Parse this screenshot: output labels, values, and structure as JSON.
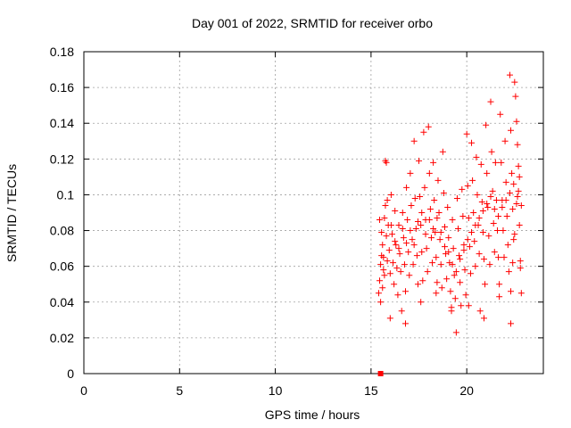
{
  "chart_data": {
    "type": "scatter",
    "title": "Day 001 of 2022, SRMTID for receiver orbo",
    "xlabel": "GPS time / hours",
    "ylabel": "SRMTID / TECUs",
    "xlim": [
      0,
      24
    ],
    "ylim": [
      0,
      0.18
    ],
    "x_ticks": [
      "0",
      "5",
      "10",
      "15",
      "20"
    ],
    "y_ticks": [
      "0",
      "0.02",
      "0.04",
      "0.06",
      "0.08",
      "0.1",
      "0.12",
      "0.14",
      "0.16",
      "0.18"
    ],
    "grid": true,
    "marker": "plus",
    "color": "#ff0000",
    "special_points": [
      {
        "x": 15.5,
        "y": 0.0,
        "marker": "square"
      }
    ],
    "series": [
      {
        "name": "",
        "points": [
          [
            15.4,
            0.045
          ],
          [
            15.45,
            0.052
          ],
          [
            15.5,
            0.061
          ],
          [
            15.55,
            0.066
          ],
          [
            15.6,
            0.072
          ],
          [
            15.65,
            0.058
          ],
          [
            15.7,
            0.087
          ],
          [
            15.75,
            0.094
          ],
          [
            15.8,
            0.077
          ],
          [
            15.85,
            0.063
          ],
          [
            15.5,
            0.04
          ],
          [
            15.6,
            0.048
          ],
          [
            15.7,
            0.055
          ],
          [
            15.75,
            0.119
          ],
          [
            15.8,
            0.118
          ],
          [
            15.9,
            0.083
          ],
          [
            15.95,
            0.069
          ],
          [
            16.0,
            0.056
          ],
          [
            16.05,
            0.1
          ],
          [
            16.1,
            0.078
          ],
          [
            16.15,
            0.062
          ],
          [
            16.2,
            0.05
          ],
          [
            16.25,
            0.091
          ],
          [
            16.3,
            0.072
          ],
          [
            16.35,
            0.059
          ],
          [
            16.4,
            0.044
          ],
          [
            16.45,
            0.083
          ],
          [
            16.5,
            0.067
          ],
          [
            16.55,
            0.057
          ],
          [
            16.6,
            0.035
          ],
          [
            16.65,
            0.09
          ],
          [
            16.7,
            0.076
          ],
          [
            16.75,
            0.061
          ],
          [
            16.8,
            0.046
          ],
          [
            16.85,
            0.104
          ],
          [
            16.9,
            0.086
          ],
          [
            16.95,
            0.068
          ],
          [
            17.0,
            0.055
          ],
          [
            17.05,
            0.112
          ],
          [
            17.1,
            0.094
          ],
          [
            17.15,
            0.075
          ],
          [
            17.2,
            0.061
          ],
          [
            17.25,
            0.13
          ],
          [
            17.3,
            0.098
          ],
          [
            17.35,
            0.081
          ],
          [
            17.4,
            0.066
          ],
          [
            17.45,
            0.05
          ],
          [
            17.5,
            0.119
          ],
          [
            17.55,
            0.099
          ],
          [
            17.6,
            0.083
          ],
          [
            17.65,
            0.068
          ],
          [
            17.7,
            0.052
          ],
          [
            17.75,
            0.135
          ],
          [
            17.8,
            0.104
          ],
          [
            17.85,
            0.086
          ],
          [
            17.9,
            0.07
          ],
          [
            17.95,
            0.057
          ],
          [
            18.0,
            0.138
          ],
          [
            18.05,
            0.112
          ],
          [
            18.1,
            0.092
          ],
          [
            18.15,
            0.076
          ],
          [
            18.2,
            0.062
          ],
          [
            18.25,
            0.118
          ],
          [
            18.3,
            0.097
          ],
          [
            18.35,
            0.079
          ],
          [
            18.4,
            0.065
          ],
          [
            18.45,
            0.051
          ],
          [
            18.5,
            0.108
          ],
          [
            18.55,
            0.09
          ],
          [
            18.6,
            0.075
          ],
          [
            18.65,
            0.061
          ],
          [
            18.7,
            0.048
          ],
          [
            18.75,
            0.124
          ],
          [
            18.8,
            0.101
          ],
          [
            18.85,
            0.082
          ],
          [
            18.9,
            0.067
          ],
          [
            18.95,
            0.053
          ],
          [
            19.0,
            0.093
          ],
          [
            19.05,
            0.076
          ],
          [
            19.1,
            0.062
          ],
          [
            19.15,
            0.046
          ],
          [
            19.2,
            0.035
          ],
          [
            19.25,
            0.086
          ],
          [
            19.3,
            0.07
          ],
          [
            19.35,
            0.055
          ],
          [
            19.4,
            0.042
          ],
          [
            19.45,
            0.023
          ],
          [
            19.5,
            0.098
          ],
          [
            19.55,
            0.081
          ],
          [
            19.6,
            0.066
          ],
          [
            19.65,
            0.051
          ],
          [
            19.7,
            0.038
          ],
          [
            19.75,
            0.103
          ],
          [
            19.8,
            0.088
          ],
          [
            19.85,
            0.072
          ],
          [
            19.9,
            0.058
          ],
          [
            19.95,
            0.044
          ],
          [
            20.0,
            0.134
          ],
          [
            20.05,
            0.105
          ],
          [
            20.1,
            0.087
          ],
          [
            20.15,
            0.071
          ],
          [
            20.2,
            0.056
          ],
          [
            20.25,
            0.129
          ],
          [
            20.3,
            0.108
          ],
          [
            20.35,
            0.09
          ],
          [
            20.4,
            0.074
          ],
          [
            20.45,
            0.06
          ],
          [
            20.5,
            0.121
          ],
          [
            20.55,
            0.1
          ],
          [
            20.6,
            0.083
          ],
          [
            20.65,
            0.067
          ],
          [
            20.7,
            0.035
          ],
          [
            20.75,
            0.117
          ],
          [
            20.8,
            0.096
          ],
          [
            20.85,
            0.079
          ],
          [
            20.9,
            0.064
          ],
          [
            20.95,
            0.05
          ],
          [
            21.0,
            0.139
          ],
          [
            21.05,
            0.112
          ],
          [
            21.1,
            0.093
          ],
          [
            21.15,
            0.077
          ],
          [
            21.2,
            0.061
          ],
          [
            21.25,
            0.152
          ],
          [
            21.3,
            0.124
          ],
          [
            21.35,
            0.102
          ],
          [
            21.4,
            0.084
          ],
          [
            21.45,
            0.068
          ],
          [
            21.5,
            0.118
          ],
          [
            21.55,
            0.097
          ],
          [
            21.6,
            0.08
          ],
          [
            21.65,
            0.065
          ],
          [
            21.7,
            0.05
          ],
          [
            21.75,
            0.145
          ],
          [
            21.8,
            0.118
          ],
          [
            21.85,
            0.097
          ],
          [
            21.9,
            0.08
          ],
          [
            21.95,
            0.065
          ],
          [
            22.0,
            0.13
          ],
          [
            22.05,
            0.107
          ],
          [
            22.1,
            0.088
          ],
          [
            22.15,
            0.072
          ],
          [
            22.2,
            0.057
          ],
          [
            22.25,
            0.167
          ],
          [
            22.3,
            0.136
          ],
          [
            22.35,
            0.112
          ],
          [
            22.4,
            0.092
          ],
          [
            22.45,
            0.075
          ],
          [
            22.5,
            0.163
          ],
          [
            22.55,
            0.155
          ],
          [
            22.6,
            0.141
          ],
          [
            22.65,
            0.128
          ],
          [
            22.7,
            0.102
          ],
          [
            22.75,
            0.083
          ],
          [
            22.8,
            0.059
          ],
          [
            22.85,
            0.045
          ],
          [
            22.7,
            0.116
          ],
          [
            22.6,
            0.095
          ],
          [
            22.5,
            0.078
          ],
          [
            22.4,
            0.062
          ],
          [
            22.3,
            0.046
          ],
          [
            15.45,
            0.086
          ],
          [
            15.55,
            0.079
          ],
          [
            15.65,
            0.065
          ],
          [
            15.85,
            0.097
          ],
          [
            16.05,
            0.083
          ],
          [
            16.25,
            0.074
          ],
          [
            16.45,
            0.07
          ],
          [
            16.65,
            0.081
          ],
          [
            16.85,
            0.073
          ],
          [
            17.05,
            0.08
          ],
          [
            17.25,
            0.072
          ],
          [
            17.45,
            0.085
          ],
          [
            17.65,
            0.09
          ],
          [
            17.85,
            0.078
          ],
          [
            18.05,
            0.086
          ],
          [
            18.25,
            0.081
          ],
          [
            18.45,
            0.087
          ],
          [
            18.65,
            0.079
          ],
          [
            18.85,
            0.071
          ],
          [
            19.05,
            0.068
          ],
          [
            19.25,
            0.061
          ],
          [
            19.45,
            0.057
          ],
          [
            19.65,
            0.064
          ],
          [
            19.85,
            0.069
          ],
          [
            20.05,
            0.075
          ],
          [
            20.25,
            0.079
          ],
          [
            20.45,
            0.083
          ],
          [
            20.65,
            0.087
          ],
          [
            20.85,
            0.091
          ],
          [
            21.05,
            0.095
          ],
          [
            21.25,
            0.099
          ],
          [
            21.45,
            0.092
          ],
          [
            21.65,
            0.088
          ],
          [
            21.85,
            0.093
          ],
          [
            22.05,
            0.097
          ],
          [
            22.25,
            0.101
          ],
          [
            22.45,
            0.106
          ],
          [
            22.65,
            0.099
          ],
          [
            22.85,
            0.094
          ],
          [
            22.75,
            0.11
          ],
          [
            16.0,
            0.031
          ],
          [
            16.8,
            0.028
          ],
          [
            17.6,
            0.04
          ],
          [
            18.4,
            0.045
          ],
          [
            19.2,
            0.037
          ],
          [
            20.1,
            0.038
          ],
          [
            20.9,
            0.031
          ],
          [
            21.7,
            0.043
          ],
          [
            22.3,
            0.028
          ],
          [
            22.8,
            0.063
          ]
        ]
      }
    ]
  }
}
